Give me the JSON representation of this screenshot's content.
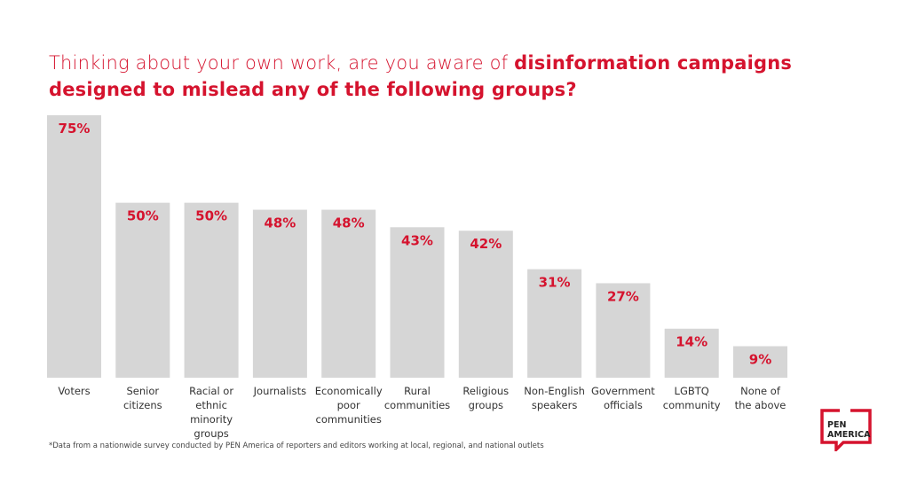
{
  "title": {
    "regular": "Thinking about your own work, are you aware of ",
    "bold_line1": "disinformation campaigns",
    "bold_line2": "designed to mislead any of the following groups?"
  },
  "chart_data": {
    "type": "bar",
    "categories": [
      "Voters",
      "Senior citizens",
      "Racial or ethnic minority groups",
      "Journalists",
      "Economically poor communities",
      "Rural communities",
      "Religious groups",
      "Non-English speakers",
      "Government officials",
      "LGBTQ community",
      "None of the above"
    ],
    "category_lines": [
      [
        "Voters"
      ],
      [
        "Senior",
        "citizens"
      ],
      [
        "Racial or",
        "ethnic",
        "minority groups"
      ],
      [
        "Journalists"
      ],
      [
        "Economically",
        "poor",
        "communities"
      ],
      [
        "Rural",
        "communities"
      ],
      [
        "Religious",
        "groups"
      ],
      [
        "Non-English",
        "speakers"
      ],
      [
        "Government",
        "officials"
      ],
      [
        "LGBTQ",
        "community"
      ],
      [
        "None of",
        "the above"
      ]
    ],
    "values": [
      75,
      50,
      50,
      48,
      48,
      43,
      42,
      31,
      27,
      14,
      9
    ],
    "data_labels": [
      "75%",
      "50%",
      "50%",
      "48%",
      "48%",
      "43%",
      "42%",
      "31%",
      "27%",
      "14%",
      "9%"
    ],
    "ylim": [
      0,
      75
    ],
    "grid": false,
    "colors": {
      "bar": "#d6d6d6",
      "label": "#d5132e"
    }
  },
  "footnote": "*Data from a nationwide survey conducted by PEN America of reporters and editors working at local, regional, and national outlets",
  "logo": {
    "line1": "PEN",
    "line2": "AMERICA",
    "color": "#d5132e"
  }
}
